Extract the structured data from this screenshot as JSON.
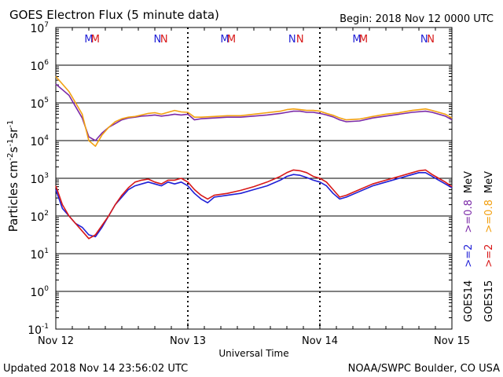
{
  "chart_data": {
    "type": "line",
    "title": "GOES Electron Flux (5 minute data)",
    "begin_label": "Begin: 2018 Nov 12 0000 UTC",
    "xlabel": "Universal Time",
    "ylabel_text": "Particles cm",
    "y_scale": "log",
    "ylim_exp": [
      -1,
      7
    ],
    "y_tick_exponents": [
      -1,
      0,
      1,
      2,
      3,
      4,
      5,
      6,
      7
    ],
    "x_range_days": [
      0,
      3
    ],
    "x_tick_labels": [
      "Nov 12",
      "Nov 13",
      "Nov 14",
      "Nov 15"
    ],
    "reference_line_exp": 3,
    "footer_left": "Updated 2018 Nov 14 23:56:02 UTC",
    "footer_right": "NOAA/SWPC Boulder, CO USA",
    "markers": [
      {
        "label": "M",
        "x": 0.25,
        "color": "#1f1fd6"
      },
      {
        "label": "M",
        "x": 0.3,
        "color": "#d81818"
      },
      {
        "label": "N",
        "x": 0.77,
        "color": "#1f1fd6"
      },
      {
        "label": "N",
        "x": 0.82,
        "color": "#d81818"
      },
      {
        "label": "M",
        "x": 1.28,
        "color": "#1f1fd6"
      },
      {
        "label": "M",
        "x": 1.33,
        "color": "#d81818"
      },
      {
        "label": "N",
        "x": 1.79,
        "color": "#1f1fd6"
      },
      {
        "label": "N",
        "x": 1.85,
        "color": "#d81818"
      },
      {
        "label": "M",
        "x": 2.28,
        "color": "#1f1fd6"
      },
      {
        "label": "M",
        "x": 2.33,
        "color": "#d81818"
      },
      {
        "label": "N",
        "x": 2.79,
        "color": "#1f1fd6"
      },
      {
        "label": "N",
        "x": 2.84,
        "color": "#d81818"
      }
    ],
    "legend": [
      {
        "sat": "GOES14",
        "energy_a": ">=2",
        "energy_b": ">=0.8",
        "unit": "MeV",
        "color_a": "#1f1fd6",
        "color_b": "#7b2aa8"
      },
      {
        "sat": "GOES15",
        "energy_a": ">=2",
        "energy_b": ">=0.8",
        "unit": "MeV",
        "color_a": "#d81818",
        "color_b": "#f2a010"
      }
    ],
    "series": [
      {
        "name": "GOES14 >=0.8 MeV",
        "color": "#7b2aa8",
        "x": [
          0,
          0.05,
          0.1,
          0.15,
          0.2,
          0.25,
          0.3,
          0.35,
          0.4,
          0.45,
          0.5,
          0.55,
          0.6,
          0.65,
          0.7,
          0.75,
          0.8,
          0.85,
          0.9,
          0.95,
          1.0,
          1.05,
          1.1,
          1.2,
          1.3,
          1.4,
          1.5,
          1.6,
          1.7,
          1.75,
          1.8,
          1.85,
          1.9,
          1.95,
          2.0,
          2.05,
          2.1,
          2.15,
          2.2,
          2.3,
          2.4,
          2.5,
          2.6,
          2.7,
          2.8,
          2.85,
          2.9,
          2.95,
          3.0
        ],
        "y": [
          5.5,
          5.35,
          5.2,
          4.9,
          4.6,
          4.1,
          4.0,
          4.2,
          4.35,
          4.45,
          4.55,
          4.6,
          4.62,
          4.65,
          4.66,
          4.68,
          4.65,
          4.67,
          4.7,
          4.68,
          4.7,
          4.55,
          4.58,
          4.6,
          4.62,
          4.62,
          4.65,
          4.68,
          4.72,
          4.75,
          4.78,
          4.78,
          4.75,
          4.75,
          4.72,
          4.68,
          4.63,
          4.55,
          4.5,
          4.52,
          4.6,
          4.65,
          4.7,
          4.75,
          4.78,
          4.75,
          4.7,
          4.65,
          4.55
        ]
      },
      {
        "name": "GOES15 >=0.8 MeV",
        "color": "#f2a010",
        "x": [
          0,
          0.05,
          0.1,
          0.15,
          0.2,
          0.25,
          0.3,
          0.35,
          0.4,
          0.45,
          0.5,
          0.55,
          0.6,
          0.65,
          0.7,
          0.75,
          0.8,
          0.85,
          0.9,
          0.95,
          1.0,
          1.05,
          1.1,
          1.2,
          1.3,
          1.4,
          1.5,
          1.6,
          1.7,
          1.75,
          1.8,
          1.85,
          1.9,
          1.95,
          2.0,
          2.05,
          2.1,
          2.15,
          2.2,
          2.3,
          2.4,
          2.5,
          2.6,
          2.7,
          2.8,
          2.85,
          2.9,
          2.95,
          3.0
        ],
        "y": [
          5.7,
          5.5,
          5.3,
          5.0,
          4.7,
          4.0,
          3.85,
          4.15,
          4.35,
          4.5,
          4.58,
          4.62,
          4.64,
          4.68,
          4.72,
          4.74,
          4.7,
          4.75,
          4.8,
          4.76,
          4.75,
          4.62,
          4.62,
          4.64,
          4.66,
          4.66,
          4.7,
          4.74,
          4.78,
          4.82,
          4.84,
          4.82,
          4.8,
          4.8,
          4.78,
          4.72,
          4.67,
          4.6,
          4.55,
          4.57,
          4.64,
          4.7,
          4.74,
          4.8,
          4.84,
          4.8,
          4.75,
          4.7,
          4.6
        ]
      },
      {
        "name": "GOES14 >=2 MeV",
        "color": "#1f1fd6",
        "x": [
          0,
          0.05,
          0.1,
          0.15,
          0.2,
          0.25,
          0.3,
          0.35,
          0.4,
          0.45,
          0.5,
          0.55,
          0.6,
          0.65,
          0.7,
          0.75,
          0.8,
          0.85,
          0.9,
          0.95,
          1.0,
          1.05,
          1.1,
          1.15,
          1.2,
          1.3,
          1.4,
          1.5,
          1.6,
          1.7,
          1.75,
          1.8,
          1.85,
          1.9,
          1.95,
          2.0,
          2.05,
          2.1,
          2.15,
          2.2,
          2.3,
          2.4,
          2.5,
          2.6,
          2.7,
          2.75,
          2.8,
          2.85,
          2.9,
          2.95,
          3.0
        ],
        "y": [
          2.7,
          2.2,
          2.0,
          1.8,
          1.7,
          1.5,
          1.45,
          1.7,
          2.0,
          2.3,
          2.5,
          2.7,
          2.8,
          2.85,
          2.9,
          2.85,
          2.8,
          2.9,
          2.85,
          2.9,
          2.8,
          2.6,
          2.45,
          2.35,
          2.5,
          2.55,
          2.6,
          2.7,
          2.8,
          2.95,
          3.05,
          3.1,
          3.08,
          3.02,
          2.95,
          2.9,
          2.8,
          2.6,
          2.45,
          2.5,
          2.65,
          2.8,
          2.9,
          3.0,
          3.1,
          3.15,
          3.15,
          3.05,
          2.95,
          2.85,
          2.75
        ]
      },
      {
        "name": "GOES15 >=2 MeV",
        "color": "#d81818",
        "x": [
          0,
          0.05,
          0.1,
          0.15,
          0.2,
          0.25,
          0.3,
          0.35,
          0.4,
          0.45,
          0.5,
          0.55,
          0.6,
          0.65,
          0.7,
          0.75,
          0.8,
          0.85,
          0.9,
          0.95,
          1.0,
          1.05,
          1.1,
          1.15,
          1.2,
          1.3,
          1.4,
          1.5,
          1.6,
          1.7,
          1.75,
          1.8,
          1.85,
          1.9,
          1.95,
          2.0,
          2.05,
          2.1,
          2.15,
          2.2,
          2.3,
          2.4,
          2.5,
          2.6,
          2.7,
          2.75,
          2.8,
          2.85,
          2.9,
          2.95,
          3.0
        ],
        "y": [
          2.8,
          2.3,
          2.0,
          1.8,
          1.6,
          1.4,
          1.5,
          1.75,
          2.0,
          2.3,
          2.55,
          2.75,
          2.9,
          2.95,
          2.98,
          2.9,
          2.85,
          2.95,
          2.95,
          3.0,
          2.9,
          2.7,
          2.55,
          2.45,
          2.55,
          2.6,
          2.68,
          2.78,
          2.9,
          3.05,
          3.15,
          3.22,
          3.2,
          3.15,
          3.05,
          3.0,
          2.9,
          2.7,
          2.5,
          2.55,
          2.7,
          2.85,
          2.95,
          3.05,
          3.15,
          3.2,
          3.22,
          3.1,
          3.0,
          2.9,
          2.78
        ]
      }
    ]
  }
}
